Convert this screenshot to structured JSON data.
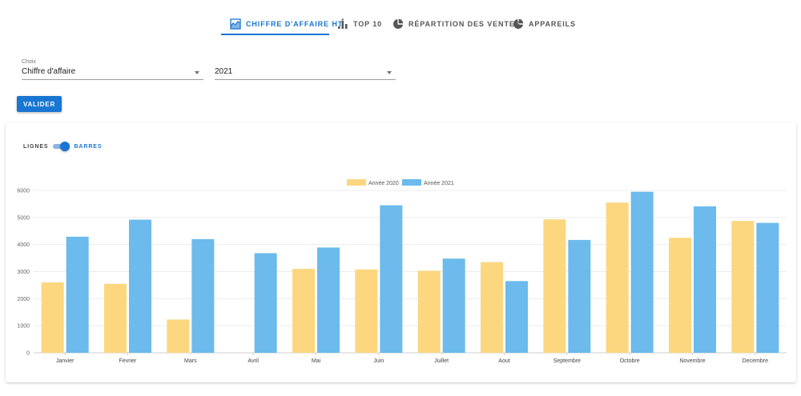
{
  "tabs": [
    {
      "label": "CHIFFRE D'AFFAIRE HT",
      "icon": "area-chart-icon",
      "active": true
    },
    {
      "label": "TOP 10",
      "icon": "bar-chart-icon",
      "active": false
    },
    {
      "label": "RÉPARTITION DES VENTES",
      "icon": "pie-chart-icon",
      "active": false
    },
    {
      "label": "APPAREILS",
      "icon": "pie-chart-icon",
      "active": false
    }
  ],
  "form": {
    "choice_label": "Choix",
    "choice_value": "Chiffre d'affaire",
    "year_value": "2021",
    "submit_label": "VALIDER"
  },
  "toggle": {
    "left_label": "LIGNES",
    "right_label": "BARRES",
    "state": "BARRES"
  },
  "colors": {
    "accent": "#1976d2",
    "series_2020": "#fcd77f",
    "series_2021": "#6cbbec"
  },
  "chart_data": {
    "type": "bar",
    "categories": [
      "Janvier",
      "Fevrier",
      "Mars",
      "Avril",
      "Mai",
      "Juin",
      "Juillet",
      "Aout",
      "Septembre",
      "Octobre",
      "Novembre",
      "Decembre"
    ],
    "series": [
      {
        "name": "Année 2020",
        "values": [
          2600,
          2550,
          1230,
          0,
          3100,
          3080,
          3030,
          3350,
          4930,
          5550,
          4250,
          4870
        ]
      },
      {
        "name": "Année 2021",
        "values": [
          4290,
          4920,
          4200,
          3680,
          3890,
          5450,
          3480,
          2650,
          4170,
          5950,
          5410,
          4800
        ]
      }
    ],
    "yticks": [
      0,
      1000,
      2000,
      3000,
      4000,
      5000,
      6000
    ],
    "ylim": [
      0,
      6000
    ],
    "grid": true,
    "legend": "top-center"
  }
}
